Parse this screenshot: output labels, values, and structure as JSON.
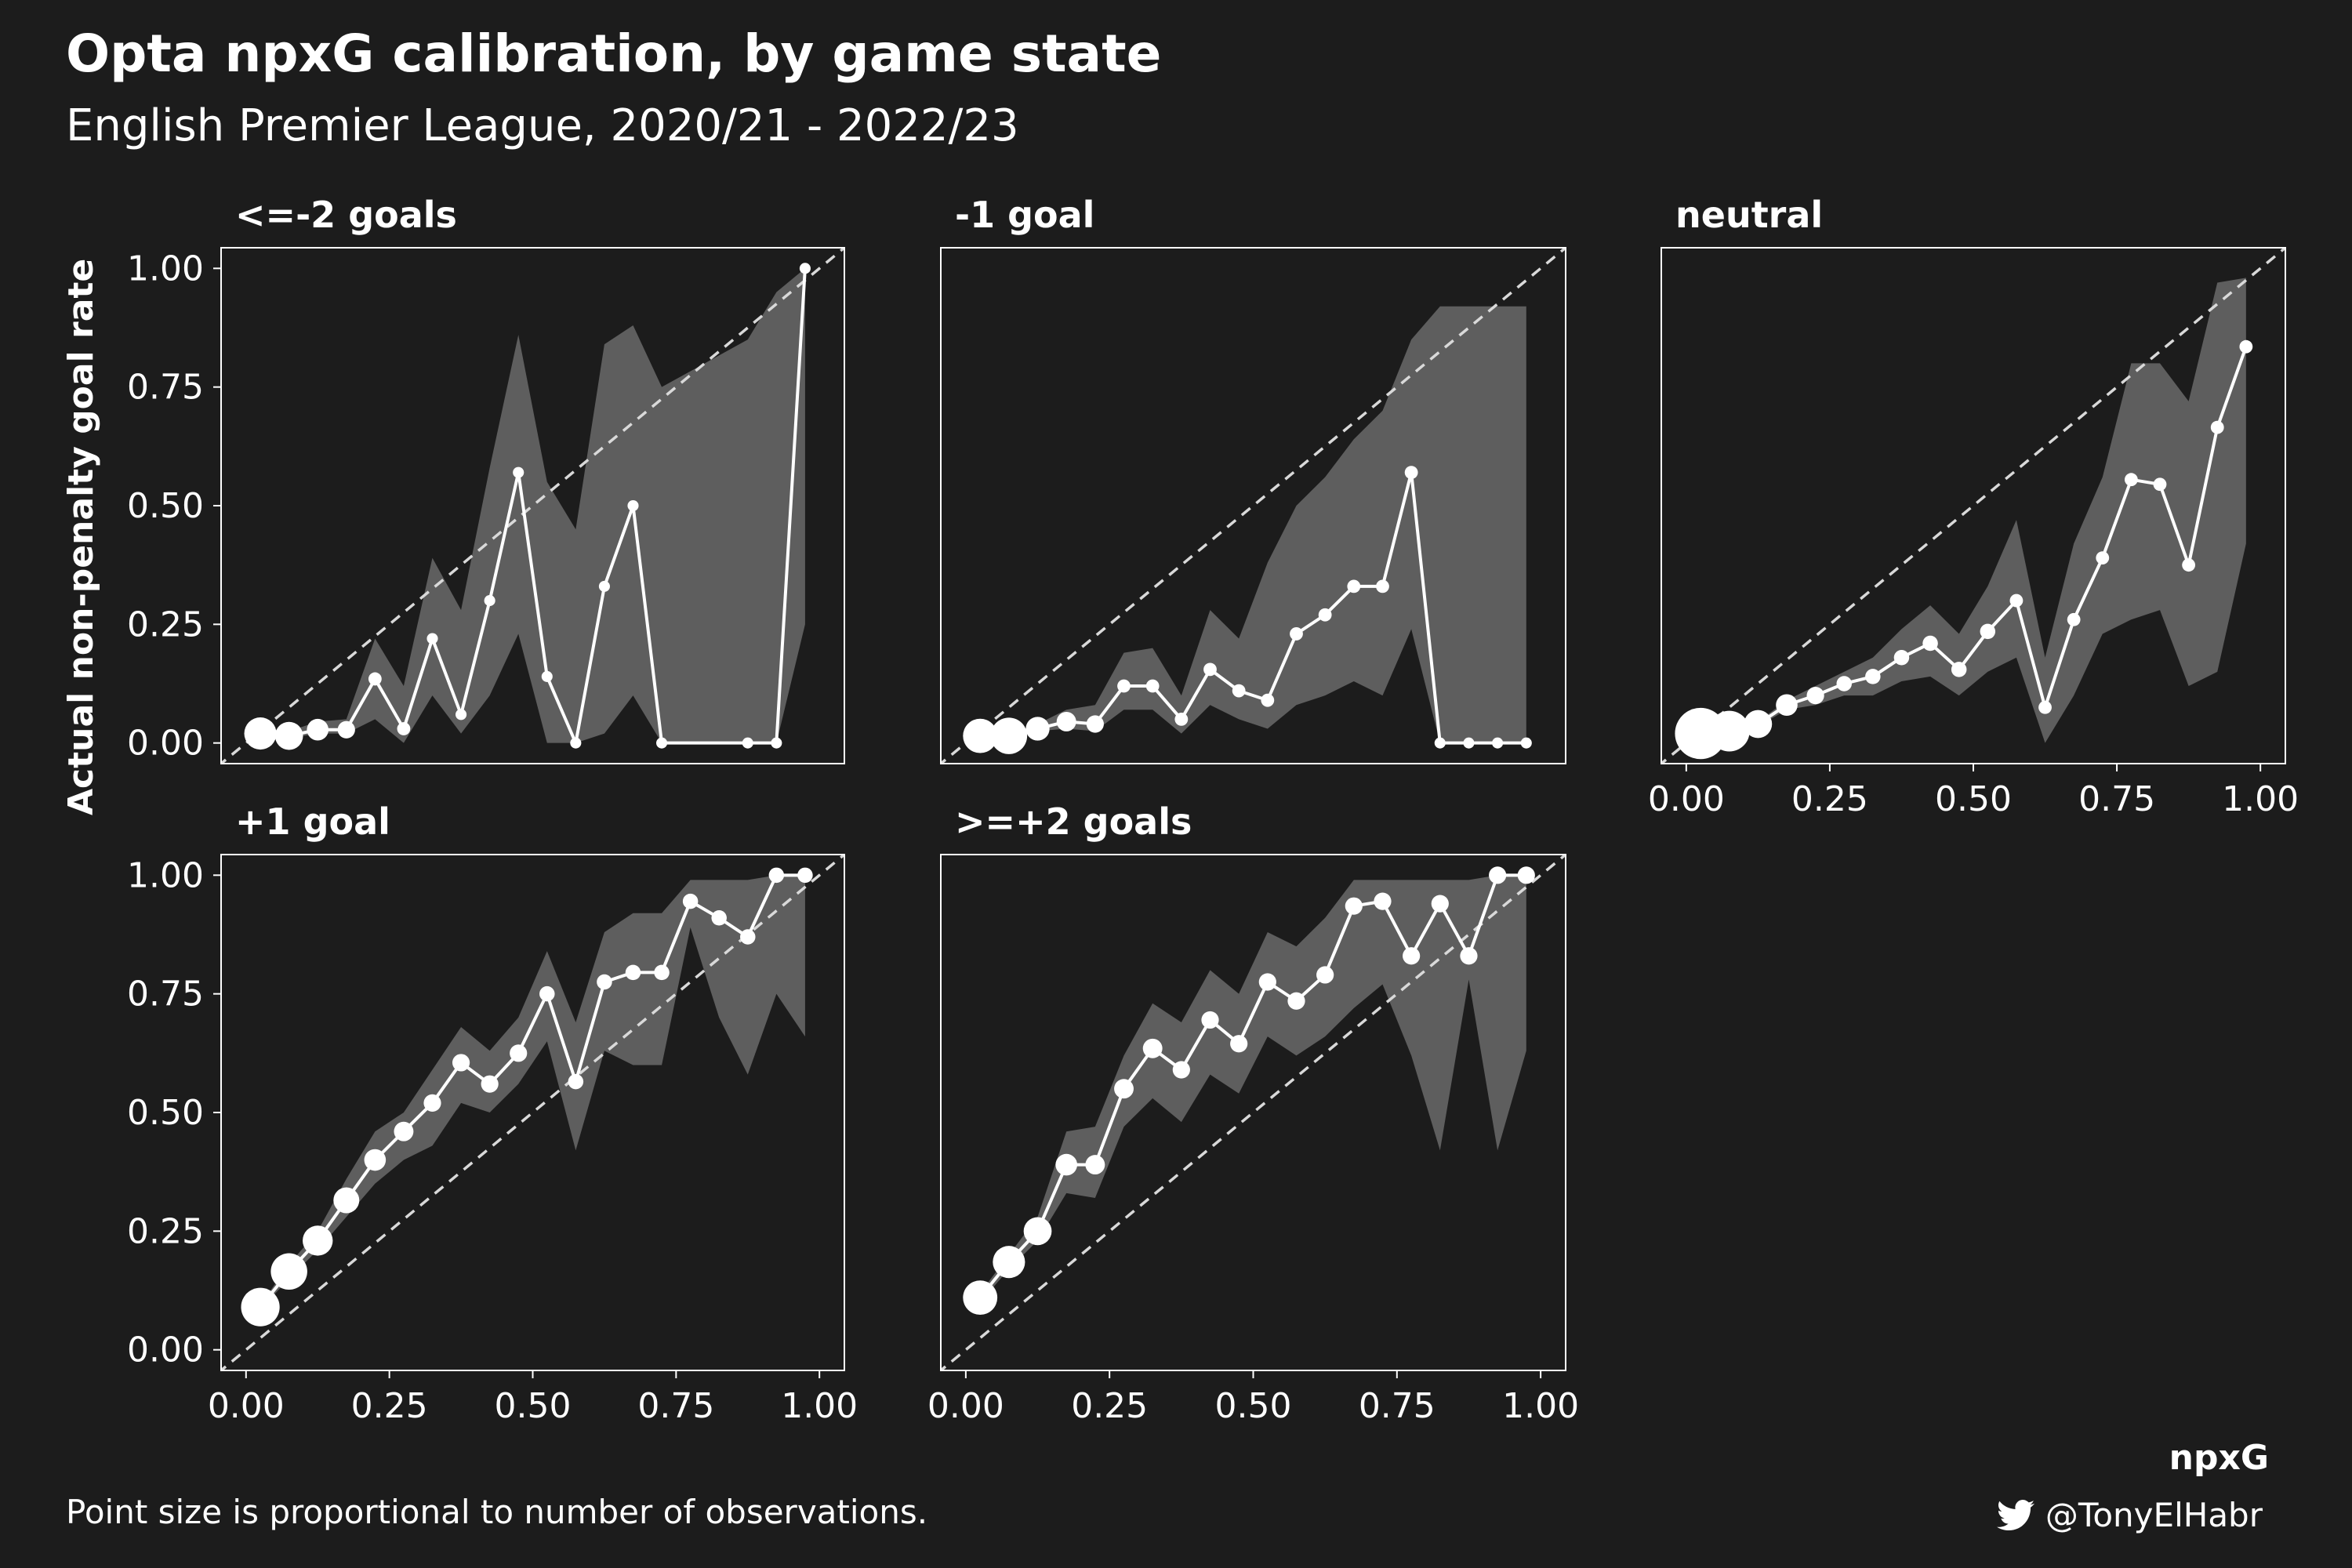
{
  "title": "Opta npxG calibration, by game state",
  "subtitle": "English Premier League, 2020/21 - 2022/23",
  "caption": "Point size is proportional to number of observations.",
  "credit": "@TonyElHabr",
  "colors": {
    "background": "#1c1c1c",
    "ribbon": "#5e5e5e",
    "line": "#ffffff",
    "diagonal": "#d9d9d9"
  },
  "chart_data": {
    "type": "line",
    "xlabel": "npxG",
    "ylabel": "Actual non-penalty goal rate",
    "xlim": [
      0,
      1
    ],
    "ylim": [
      0,
      1
    ],
    "ticks": [
      "0.00",
      "0.25",
      "0.50",
      "0.75",
      "1.00"
    ],
    "reference_line": "y = x (dashed)",
    "panels": [
      {
        "name": "<=-2 goals",
        "x": [
          0.025,
          0.075,
          0.125,
          0.175,
          0.225,
          0.275,
          0.325,
          0.375,
          0.425,
          0.475,
          0.525,
          0.575,
          0.625,
          0.675,
          0.725,
          0.875,
          0.925,
          0.975
        ],
        "y": [
          0.02,
          0.015,
          0.028,
          0.028,
          0.135,
          0.03,
          0.22,
          0.06,
          0.3,
          0.57,
          0.14,
          0.0,
          0.33,
          0.5,
          0.0,
          0.0,
          0.0,
          1.0
        ],
        "lower": [
          0.015,
          0.01,
          0.02,
          0.02,
          0.05,
          0.0,
          0.1,
          0.02,
          0.1,
          0.23,
          0.0,
          0.0,
          0.02,
          0.1,
          0.0,
          0.0,
          0.0,
          0.25
        ],
        "upper": [
          0.03,
          0.025,
          0.045,
          0.05,
          0.22,
          0.12,
          0.39,
          0.28,
          0.58,
          0.86,
          0.55,
          0.45,
          0.84,
          0.88,
          0.75,
          0.85,
          0.95,
          1.0
        ],
        "n": [
          13,
          11,
          8,
          6,
          4,
          4,
          3,
          3,
          3,
          3,
          3,
          3,
          3,
          3,
          3,
          3,
          3,
          3
        ]
      },
      {
        "name": "-1 goal",
        "x": [
          0.025,
          0.075,
          0.125,
          0.175,
          0.225,
          0.275,
          0.325,
          0.375,
          0.425,
          0.475,
          0.525,
          0.575,
          0.625,
          0.675,
          0.725,
          0.775,
          0.825,
          0.875,
          0.925,
          0.975
        ],
        "y": [
          0.015,
          0.015,
          0.03,
          0.045,
          0.04,
          0.12,
          0.12,
          0.05,
          0.155,
          0.11,
          0.09,
          0.23,
          0.27,
          0.33,
          0.33,
          0.57,
          0.0,
          0.0,
          0.0,
          0.0
        ],
        "lower": [
          0.01,
          0.012,
          0.025,
          0.03,
          0.025,
          0.07,
          0.07,
          0.02,
          0.08,
          0.05,
          0.03,
          0.08,
          0.1,
          0.13,
          0.1,
          0.24,
          0.0,
          0.0,
          0.0,
          0.0
        ],
        "upper": [
          0.02,
          0.02,
          0.04,
          0.07,
          0.08,
          0.19,
          0.2,
          0.1,
          0.28,
          0.22,
          0.38,
          0.5,
          0.56,
          0.64,
          0.7,
          0.85,
          0.92,
          0.92,
          0.92,
          0.92
        ],
        "n": [
          14,
          15,
          9,
          7,
          6,
          4,
          4,
          4,
          4,
          4,
          4,
          4,
          4,
          4,
          4,
          4,
          3,
          3,
          3,
          3
        ]
      },
      {
        "name": "neutral",
        "x": [
          0.025,
          0.075,
          0.125,
          0.175,
          0.225,
          0.275,
          0.325,
          0.375,
          0.425,
          0.475,
          0.525,
          0.575,
          0.625,
          0.675,
          0.725,
          0.775,
          0.825,
          0.875,
          0.925,
          0.975
        ],
        "y": [
          0.02,
          0.025,
          0.04,
          0.08,
          0.1,
          0.125,
          0.14,
          0.18,
          0.21,
          0.155,
          0.235,
          0.3,
          0.075,
          0.26,
          0.39,
          0.555,
          0.545,
          0.375,
          0.665,
          0.835
        ],
        "lower": [
          0.018,
          0.022,
          0.035,
          0.07,
          0.08,
          0.1,
          0.1,
          0.13,
          0.14,
          0.1,
          0.15,
          0.18,
          0.0,
          0.1,
          0.23,
          0.26,
          0.28,
          0.12,
          0.15,
          0.42
        ],
        "upper": [
          0.022,
          0.028,
          0.045,
          0.09,
          0.12,
          0.15,
          0.18,
          0.24,
          0.29,
          0.23,
          0.33,
          0.47,
          0.18,
          0.42,
          0.56,
          0.8,
          0.8,
          0.72,
          0.97,
          0.98
        ],
        "n": [
          22,
          17,
          11,
          8,
          6,
          5,
          5,
          5,
          5,
          5,
          5,
          4,
          4,
          4,
          4,
          4,
          4,
          4,
          4,
          4
        ]
      },
      {
        "name": "+1 goal",
        "x": [
          0.025,
          0.075,
          0.125,
          0.175,
          0.225,
          0.275,
          0.325,
          0.375,
          0.425,
          0.475,
          0.525,
          0.575,
          0.625,
          0.675,
          0.725,
          0.775,
          0.825,
          0.875,
          0.925,
          0.975
        ],
        "y": [
          0.09,
          0.165,
          0.23,
          0.315,
          0.4,
          0.46,
          0.52,
          0.605,
          0.56,
          0.625,
          0.75,
          0.565,
          0.775,
          0.795,
          0.795,
          0.945,
          0.91,
          0.87,
          1.0,
          1.0
        ],
        "lower": [
          0.085,
          0.15,
          0.21,
          0.28,
          0.35,
          0.4,
          0.43,
          0.52,
          0.5,
          0.56,
          0.65,
          0.42,
          0.63,
          0.6,
          0.6,
          0.89,
          0.7,
          0.58,
          0.75,
          0.66
        ],
        "upper": [
          0.095,
          0.18,
          0.25,
          0.36,
          0.46,
          0.5,
          0.59,
          0.68,
          0.63,
          0.7,
          0.84,
          0.69,
          0.88,
          0.92,
          0.92,
          0.99,
          0.99,
          0.99,
          1.0,
          1.0
        ],
        "n": [
          16,
          15,
          12,
          10,
          8,
          7,
          6,
          6,
          6,
          6,
          5,
          5,
          5,
          5,
          5,
          5,
          5,
          5,
          5,
          5
        ]
      },
      {
        "name": ">=+2 goals",
        "x": [
          0.025,
          0.075,
          0.125,
          0.175,
          0.225,
          0.275,
          0.325,
          0.375,
          0.425,
          0.475,
          0.525,
          0.575,
          0.625,
          0.675,
          0.725,
          0.775,
          0.825,
          0.875,
          0.925,
          0.975
        ],
        "y": [
          0.11,
          0.185,
          0.25,
          0.39,
          0.39,
          0.55,
          0.635,
          0.59,
          0.695,
          0.645,
          0.775,
          0.735,
          0.79,
          0.935,
          0.945,
          0.83,
          0.94,
          0.83,
          1.0,
          1.0
        ],
        "lower": [
          0.1,
          0.17,
          0.23,
          0.33,
          0.32,
          0.47,
          0.53,
          0.48,
          0.58,
          0.54,
          0.66,
          0.62,
          0.66,
          0.72,
          0.77,
          0.62,
          0.42,
          0.78,
          0.42,
          0.63
        ],
        "upper": [
          0.12,
          0.2,
          0.28,
          0.46,
          0.47,
          0.62,
          0.73,
          0.69,
          0.8,
          0.75,
          0.88,
          0.85,
          0.91,
          0.99,
          0.99,
          0.99,
          0.99,
          0.99,
          1.0,
          1.0
        ],
        "n": [
          14,
          13,
          11,
          8,
          7,
          7,
          7,
          6,
          6,
          6,
          6,
          6,
          6,
          6,
          6,
          6,
          6,
          6,
          6,
          6
        ]
      }
    ]
  }
}
